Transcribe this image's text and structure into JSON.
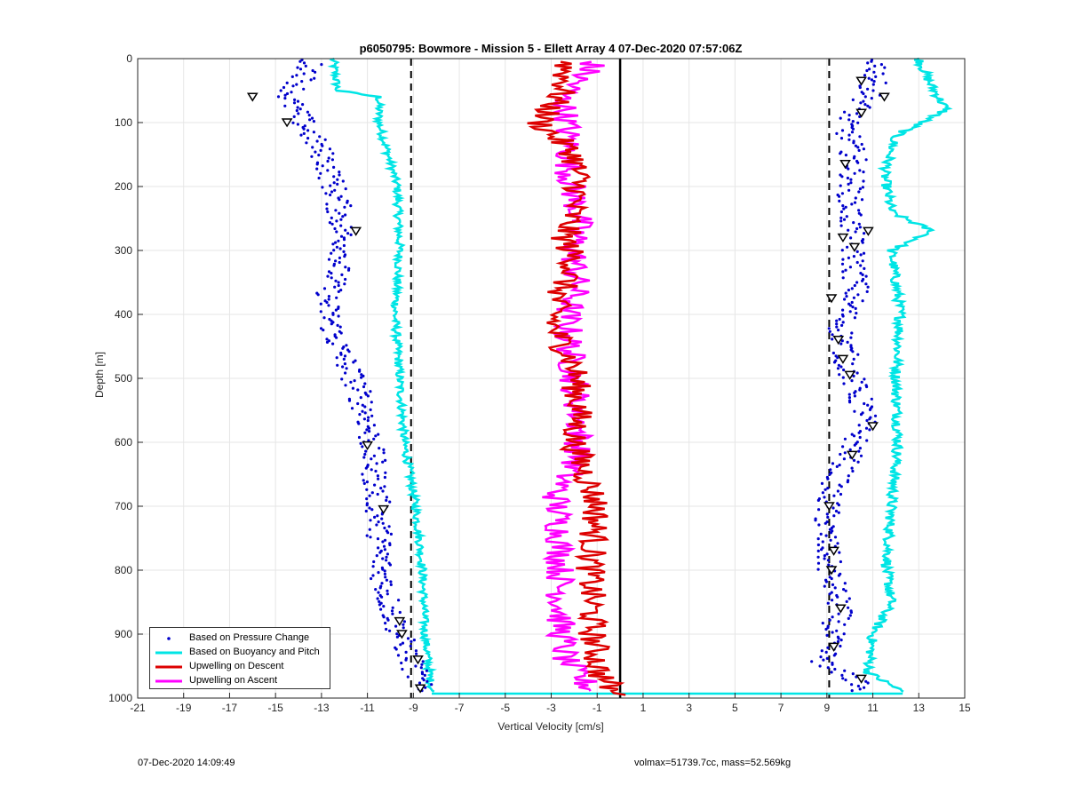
{
  "chart_data": {
    "type": "scatter",
    "title": "p6050795: Bowmore - Mission 5 - Ellett Array 4 07-Dec-2020 07:57:06Z",
    "xlabel": "Vertical Velocity [cm/s]",
    "ylabel": "Depth [m]",
    "xlim": [
      -21,
      15
    ],
    "ylim": [
      0,
      1000
    ],
    "y_reversed": true,
    "grid": true,
    "legend_position": "bottom-left",
    "xticks": [
      "-21",
      "-19",
      "-17",
      "-15",
      "-13",
      "-11",
      "-9",
      "-7",
      "-5",
      "-3",
      "-1",
      "1",
      "3",
      "5",
      "7",
      "9",
      "11",
      "13",
      "15"
    ],
    "yticks": [
      "0",
      "100",
      "200",
      "300",
      "400",
      "500",
      "600",
      "700",
      "800",
      "900",
      "1000"
    ],
    "reference_lines": [
      {
        "x": -9.1,
        "style": "dashed",
        "color": "#000000"
      },
      {
        "x": 9.1,
        "style": "dashed",
        "color": "#000000"
      },
      {
        "x": 0,
        "style": "solid",
        "color": "#000000"
      }
    ],
    "series": [
      {
        "name": "Based on Pressure Change",
        "color": "#0000cc",
        "marker": "dot",
        "descent_profile": [
          [
            -13.5,
            20
          ],
          [
            -14.5,
            60
          ],
          [
            -13.8,
            100
          ],
          [
            -12.8,
            160
          ],
          [
            -12.3,
            220
          ],
          [
            -12.0,
            300
          ],
          [
            -12.8,
            380
          ],
          [
            -12.4,
            440
          ],
          [
            -11.6,
            500
          ],
          [
            -11.0,
            560
          ],
          [
            -10.8,
            620
          ],
          [
            -10.6,
            680
          ],
          [
            -10.5,
            720
          ],
          [
            -10.4,
            800
          ],
          [
            -10.0,
            860
          ],
          [
            -9.6,
            900
          ],
          [
            -9.0,
            950
          ],
          [
            -8.7,
            985
          ]
        ],
        "ascent_profile": [
          [
            11.2,
            20
          ],
          [
            10.8,
            60
          ],
          [
            9.8,
            100
          ],
          [
            10.2,
            160
          ],
          [
            10.0,
            220
          ],
          [
            10.1,
            300
          ],
          [
            10.3,
            360
          ],
          [
            9.6,
            420
          ],
          [
            9.9,
            480
          ],
          [
            10.7,
            560
          ],
          [
            10.0,
            620
          ],
          [
            9.1,
            680
          ],
          [
            8.9,
            740
          ],
          [
            9.1,
            800
          ],
          [
            9.6,
            860
          ],
          [
            9.2,
            900
          ],
          [
            8.8,
            950
          ],
          [
            10.5,
            975
          ]
        ]
      },
      {
        "name": "Based on Buoyancy and Pitch",
        "color": "#00e5e5",
        "style": "line",
        "descent_profile": [
          [
            -12.5,
            0
          ],
          [
            -12.3,
            50
          ],
          [
            -10.5,
            60
          ],
          [
            -10.5,
            100
          ],
          [
            -10.1,
            150
          ],
          [
            -9.7,
            200
          ],
          [
            -9.6,
            300
          ],
          [
            -9.8,
            400
          ],
          [
            -9.6,
            500
          ],
          [
            -9.4,
            600
          ],
          [
            -8.9,
            700
          ],
          [
            -8.6,
            800
          ],
          [
            -8.5,
            900
          ],
          [
            -8.2,
            990
          ]
        ],
        "ascent_profile": [
          [
            13.0,
            0
          ],
          [
            13.5,
            40
          ],
          [
            14.2,
            80
          ],
          [
            12.0,
            120
          ],
          [
            11.5,
            180
          ],
          [
            11.8,
            240
          ],
          [
            13.6,
            270
          ],
          [
            11.8,
            300
          ],
          [
            12.2,
            400
          ],
          [
            12.0,
            500
          ],
          [
            12.1,
            600
          ],
          [
            11.8,
            700
          ],
          [
            11.6,
            800
          ],
          [
            11.8,
            850
          ],
          [
            11.0,
            900
          ],
          [
            10.8,
            960
          ],
          [
            12.3,
            990
          ]
        ]
      },
      {
        "name": "Upwelling on Descent",
        "color": "#dd0000",
        "style": "line",
        "profile": [
          [
            -2.3,
            0
          ],
          [
            -2.5,
            50
          ],
          [
            -3.5,
            100
          ],
          [
            -2.0,
            150
          ],
          [
            -1.8,
            200
          ],
          [
            -2.4,
            280
          ],
          [
            -2.0,
            320
          ],
          [
            -2.8,
            380
          ],
          [
            -2.9,
            420
          ],
          [
            -2.0,
            480
          ],
          [
            -1.8,
            550
          ],
          [
            -2.0,
            600
          ],
          [
            -1.5,
            650
          ],
          [
            -1.0,
            700
          ],
          [
            -1.3,
            800
          ],
          [
            -1.2,
            900
          ],
          [
            -0.9,
            960
          ],
          [
            -0.2,
            995
          ]
        ]
      },
      {
        "name": "Upwelling on Ascent",
        "color": "#ff00ff",
        "style": "line",
        "profile": [
          [
            -1.2,
            10
          ],
          [
            -2.5,
            60
          ],
          [
            -2.3,
            110
          ],
          [
            -2.2,
            180
          ],
          [
            -1.8,
            250
          ],
          [
            -2.0,
            300
          ],
          [
            -1.9,
            360
          ],
          [
            -2.3,
            400
          ],
          [
            -2.1,
            480
          ],
          [
            -1.8,
            560
          ],
          [
            -1.8,
            620
          ],
          [
            -2.8,
            680
          ],
          [
            -2.6,
            750
          ],
          [
            -2.6,
            800
          ],
          [
            -2.6,
            880
          ],
          [
            -2.4,
            940
          ],
          [
            -1.2,
            990
          ]
        ]
      }
    ]
  },
  "footer": {
    "timestamp": "07-Dec-2020 14:09:49",
    "info": "volmax=51739.7cc, mass=52.569kg"
  }
}
